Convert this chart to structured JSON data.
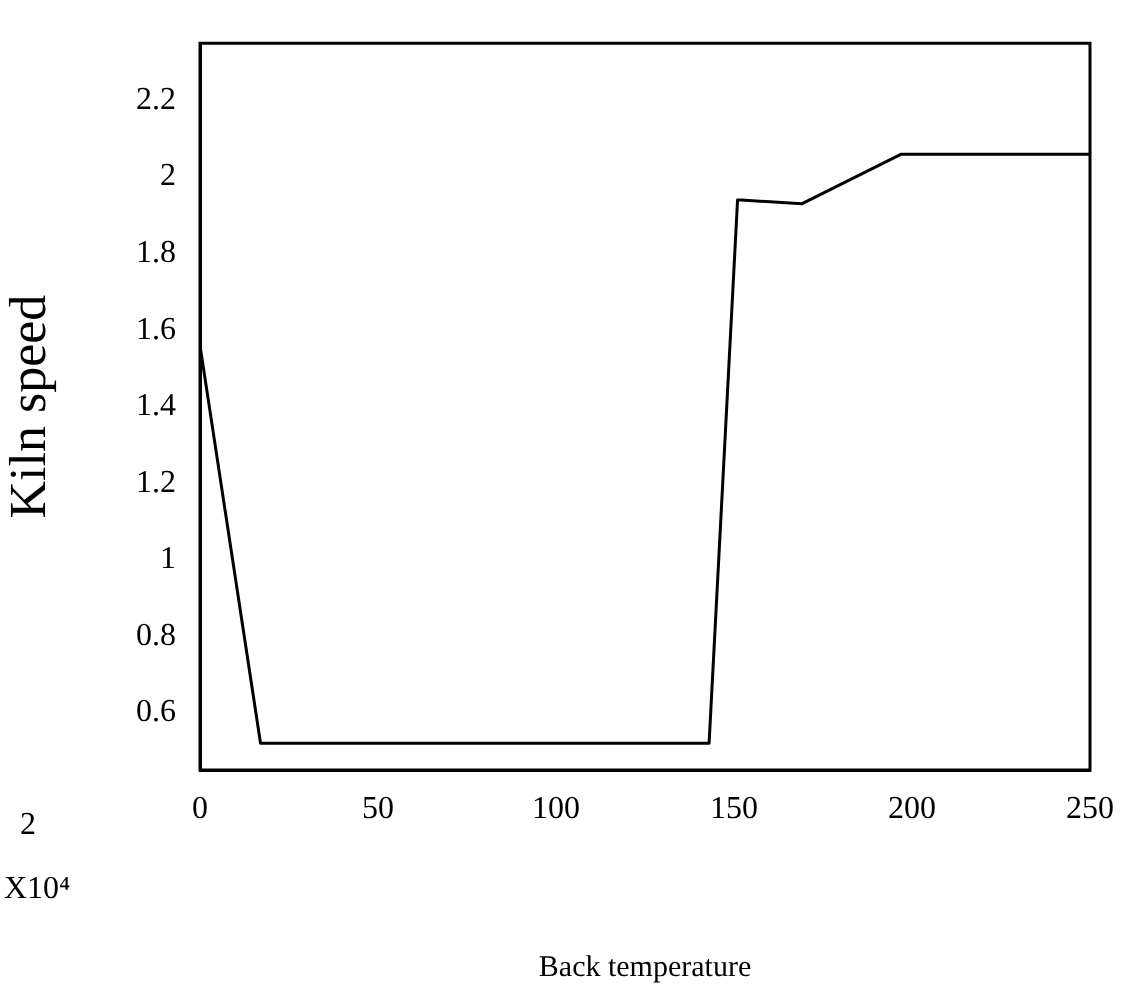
{
  "chart_data": {
    "type": "line",
    "xlabel": "Back temperature",
    "ylabel": "Kiln speed",
    "x": [
      0,
      17,
      143,
      151,
      152,
      169,
      197,
      250
    ],
    "series": [
      {
        "color": "#000000",
        "values": [
          1.56,
          0.52,
          0.52,
          1.94,
          1.94,
          1.93,
          2.06,
          2.06
        ]
      }
    ],
    "xlim": [
      0,
      250
    ],
    "xticks": [
      0,
      50,
      100,
      150,
      200,
      250
    ],
    "ylim": [
      0.45,
      2.35
    ],
    "yticks": [
      0.6,
      0.8,
      1,
      1.2,
      1.4,
      1.6,
      1.8,
      2,
      2.2
    ],
    "grid": false,
    "legend": false,
    "marker": "none",
    "line_style": "solid",
    "annotations": [
      "2",
      "X10⁴"
    ]
  }
}
